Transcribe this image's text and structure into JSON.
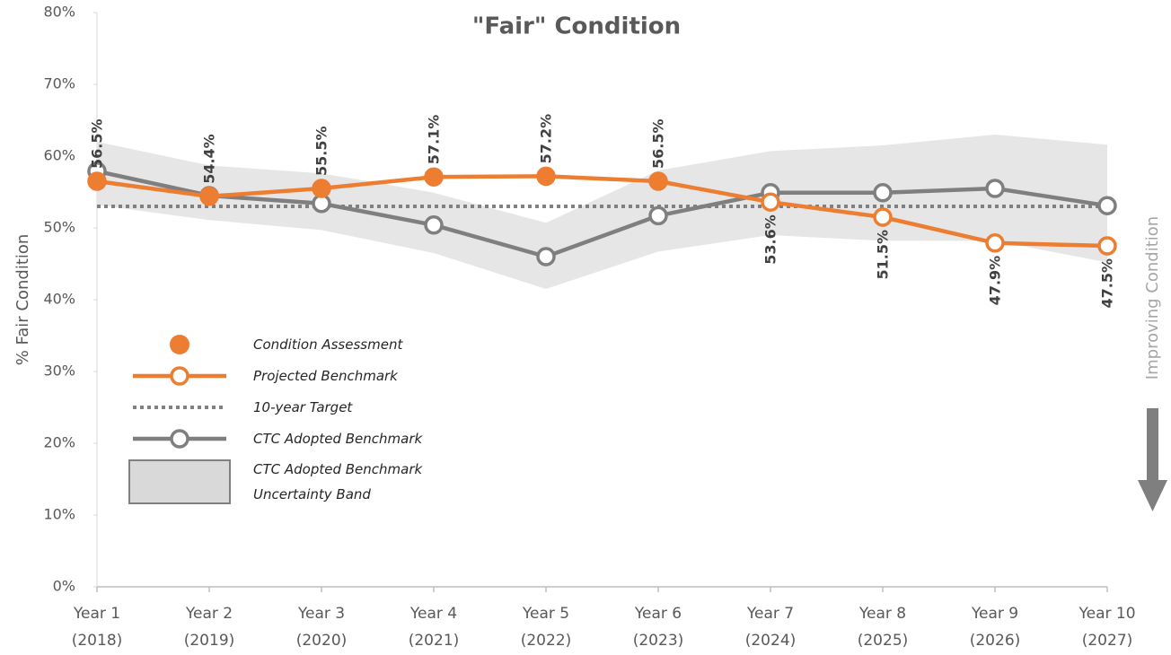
{
  "chart_data": {
    "type": "line",
    "title": "\"Fair\" Condition",
    "y_label": "% Fair Condition",
    "annotation": "Improving Condition",
    "categories": [
      [
        "Year 1",
        "(2018)"
      ],
      [
        "Year 2",
        "(2019)"
      ],
      [
        "Year 3",
        "(2020)"
      ],
      [
        "Year 4",
        "(2021)"
      ],
      [
        "Year 5",
        "(2022)"
      ],
      [
        "Year 6",
        "(2023)"
      ],
      [
        "Year 7",
        "(2024)"
      ],
      [
        "Year 8",
        "(2025)"
      ],
      [
        "Year 9",
        "(2026)"
      ],
      [
        "Year 10",
        "(2027)"
      ]
    ],
    "ylim": [
      0,
      80
    ],
    "yticks": [
      {
        "value": 0,
        "label": "0%"
      },
      {
        "value": 10,
        "label": "10%"
      },
      {
        "value": 20,
        "label": "20%"
      },
      {
        "value": 30,
        "label": "30%"
      },
      {
        "value": 40,
        "label": "40%"
      },
      {
        "value": 50,
        "label": "50%"
      },
      {
        "value": 60,
        "label": "60%"
      },
      {
        "value": 70,
        "label": "70%"
      },
      {
        "value": 80,
        "label": "80%"
      }
    ],
    "series": [
      {
        "name": "Condition Assessment",
        "style": "markers",
        "color": "#ED7D31",
        "values": [
          56.5,
          54.4,
          55.5,
          57.1,
          57.2,
          56.5,
          null,
          null,
          null,
          null
        ]
      },
      {
        "name": "Projected Benchmark",
        "style": "line",
        "color": "#ED7D31",
        "values": [
          56.5,
          54.4,
          55.5,
          57.1,
          57.2,
          56.5,
          53.6,
          51.5,
          47.9,
          47.5
        ],
        "value_labels": [
          "56.5%",
          "54.4%",
          "55.5%",
          "57.1%",
          "57.2%",
          "56.5%",
          "53.6%",
          "51.5%",
          "47.9%",
          "47.5%"
        ]
      },
      {
        "name": "10-year Target",
        "style": "dotted",
        "color": "#808080",
        "values": [
          53,
          53,
          53,
          53,
          53,
          53,
          53,
          53,
          53,
          53
        ]
      },
      {
        "name": "CTC Adopted Benchmark",
        "style": "line",
        "color": "#7F7F7F",
        "values": [
          57.9,
          54.5,
          53.4,
          50.4,
          46.0,
          51.7,
          54.9,
          54.9,
          55.5,
          53.1
        ]
      },
      {
        "name": "CTC Adopted Benchmark Uncertainty Band",
        "style": "band",
        "color": "#E6E6E6",
        "upper": [
          62.0,
          58.7,
          57.6,
          54.9,
          50.7,
          58.0,
          60.7,
          61.5,
          63.0,
          61.6
        ],
        "lower": [
          53.2,
          51.1,
          49.7,
          46.5,
          41.5,
          46.7,
          49.0,
          48.2,
          48.2,
          45.2
        ]
      }
    ]
  }
}
